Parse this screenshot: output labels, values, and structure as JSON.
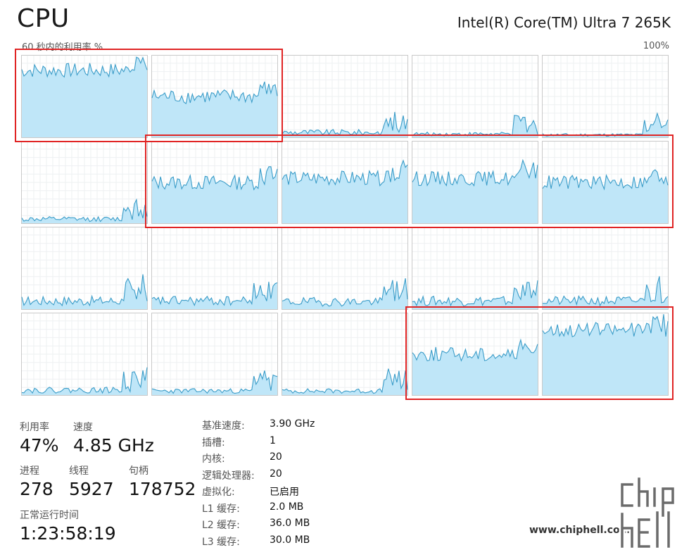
{
  "header": {
    "title": "CPU",
    "cpu_model": "Intel(R) Core(TM) Ultra 7 265K",
    "util_label": "60 秒内的利用率 %",
    "max_label": "100%"
  },
  "colors": {
    "fill": "#bfe6f8",
    "line": "#3a9cc8",
    "highlight": "#e02424"
  },
  "cores": [
    {
      "level": 0.82,
      "highlighted": true
    },
    {
      "level": 0.5,
      "highlighted": true
    },
    {
      "level": 0.06,
      "highlighted": false
    },
    {
      "level": 0.04,
      "highlighted": false
    },
    {
      "level": 0.03,
      "highlighted": false
    },
    {
      "level": 0.05,
      "highlighted": false
    },
    {
      "level": 0.5,
      "highlighted": true
    },
    {
      "level": 0.55,
      "highlighted": true
    },
    {
      "level": 0.55,
      "highlighted": true
    },
    {
      "level": 0.5,
      "highlighted": true
    },
    {
      "level": 0.1,
      "highlighted": false
    },
    {
      "level": 0.1,
      "highlighted": false
    },
    {
      "level": 0.09,
      "highlighted": false
    },
    {
      "level": 0.1,
      "highlighted": false
    },
    {
      "level": 0.1,
      "highlighted": false
    },
    {
      "level": 0.06,
      "highlighted": false
    },
    {
      "level": 0.05,
      "highlighted": false
    },
    {
      "level": 0.05,
      "highlighted": false
    },
    {
      "level": 0.5,
      "highlighted": true
    },
    {
      "level": 0.8,
      "highlighted": true
    }
  ],
  "stats": {
    "utilization": {
      "label": "利用率",
      "value": "47%"
    },
    "speed": {
      "label": "速度",
      "value": "4.85 GHz"
    },
    "processes": {
      "label": "进程",
      "value": "278"
    },
    "threads": {
      "label": "线程",
      "value": "5927"
    },
    "handles": {
      "label": "句柄",
      "value": "178752"
    },
    "uptime": {
      "label": "正常运行时间",
      "value": "1:23:58:19"
    }
  },
  "specs": [
    {
      "key": "基准速度:",
      "value": "3.90 GHz"
    },
    {
      "key": "插槽:",
      "value": "1"
    },
    {
      "key": "内核:",
      "value": "20"
    },
    {
      "key": "逻辑处理器:",
      "value": "20"
    },
    {
      "key": "虚拟化:",
      "value": "已启用"
    },
    {
      "key": "L1 缓存:",
      "value": "2.0 MB"
    },
    {
      "key": "L2 缓存:",
      "value": "36.0 MB"
    },
    {
      "key": "L3 缓存:",
      "value": "30.0 MB"
    }
  ],
  "watermark": {
    "url": "www.chiphell.com",
    "logo_text": "chip hell"
  }
}
